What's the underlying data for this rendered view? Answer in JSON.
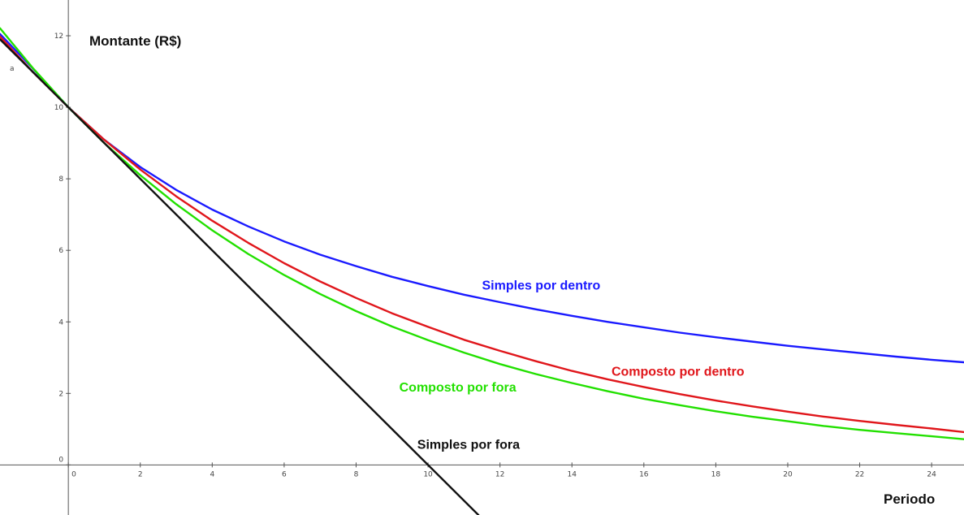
{
  "chart_data": {
    "type": "line",
    "title": "",
    "ylabel": "Montante (R$)",
    "xlabel": "Periodo",
    "point_label": "a",
    "xlim": [
      -1.9,
      24.9
    ],
    "ylim": [
      -1.4,
      13.0
    ],
    "x_ticks": [
      0,
      2,
      4,
      6,
      8,
      10,
      12,
      14,
      16,
      18,
      20,
      22,
      24
    ],
    "y_ticks": [
      0,
      2,
      4,
      6,
      8,
      10,
      12
    ],
    "grid": false,
    "series": [
      {
        "name": "Simples por dentro",
        "color": "#1a1aff",
        "x": [
          -1.9,
          -1,
          0,
          1,
          2,
          3,
          4,
          5,
          6,
          7,
          8,
          9,
          10,
          11,
          12,
          13,
          14,
          15,
          16,
          17,
          18,
          19,
          20,
          21,
          22,
          23,
          24,
          24.9
        ],
        "y": [
          12.05,
          11.1,
          10.0,
          9.09,
          8.33,
          7.69,
          7.14,
          6.67,
          6.25,
          5.88,
          5.56,
          5.26,
          5.0,
          4.76,
          4.55,
          4.35,
          4.17,
          4.0,
          3.85,
          3.7,
          3.57,
          3.45,
          3.33,
          3.23,
          3.13,
          3.03,
          2.94,
          2.87
        ],
        "label_x": 11.5,
        "label_y": 4.9
      },
      {
        "name": "Composto por dentro",
        "color": "#e0161b",
        "x": [
          -1.9,
          -1,
          0,
          1,
          2,
          3,
          4,
          5,
          6,
          7,
          8,
          9,
          10,
          11,
          12,
          13,
          14,
          15,
          16,
          17,
          18,
          19,
          20,
          21,
          22,
          23,
          24,
          24.9
        ],
        "y": [
          11.98,
          11.0,
          10.0,
          9.09,
          8.26,
          7.51,
          6.83,
          6.21,
          5.64,
          5.13,
          4.67,
          4.24,
          3.86,
          3.5,
          3.19,
          2.9,
          2.63,
          2.39,
          2.18,
          1.98,
          1.8,
          1.64,
          1.49,
          1.35,
          1.23,
          1.12,
          1.02,
          0.92
        ],
        "label_x": 15.1,
        "label_y": 2.5
      },
      {
        "name": "Composto por fora",
        "color": "#22e000",
        "x": [
          -1.9,
          -1,
          0,
          1,
          2,
          3,
          4,
          5,
          6,
          7,
          8,
          9,
          10,
          11,
          12,
          13,
          14,
          15,
          16,
          17,
          18,
          19,
          20,
          21,
          22,
          23,
          24,
          24.9
        ],
        "y": [
          12.21,
          11.11,
          10.0,
          9.0,
          8.1,
          7.29,
          6.56,
          5.9,
          5.31,
          4.78,
          4.3,
          3.87,
          3.49,
          3.14,
          2.82,
          2.54,
          2.29,
          2.06,
          1.85,
          1.67,
          1.5,
          1.35,
          1.22,
          1.09,
          0.98,
          0.89,
          0.8,
          0.72
        ],
        "label_x": 9.2,
        "label_y": 2.05
      },
      {
        "name": "Simples por fora",
        "color": "#111111",
        "x": [
          -1.9,
          11.4
        ],
        "y": [
          11.9,
          -1.4
        ],
        "label_x": 9.7,
        "label_y": 0.45
      }
    ]
  }
}
